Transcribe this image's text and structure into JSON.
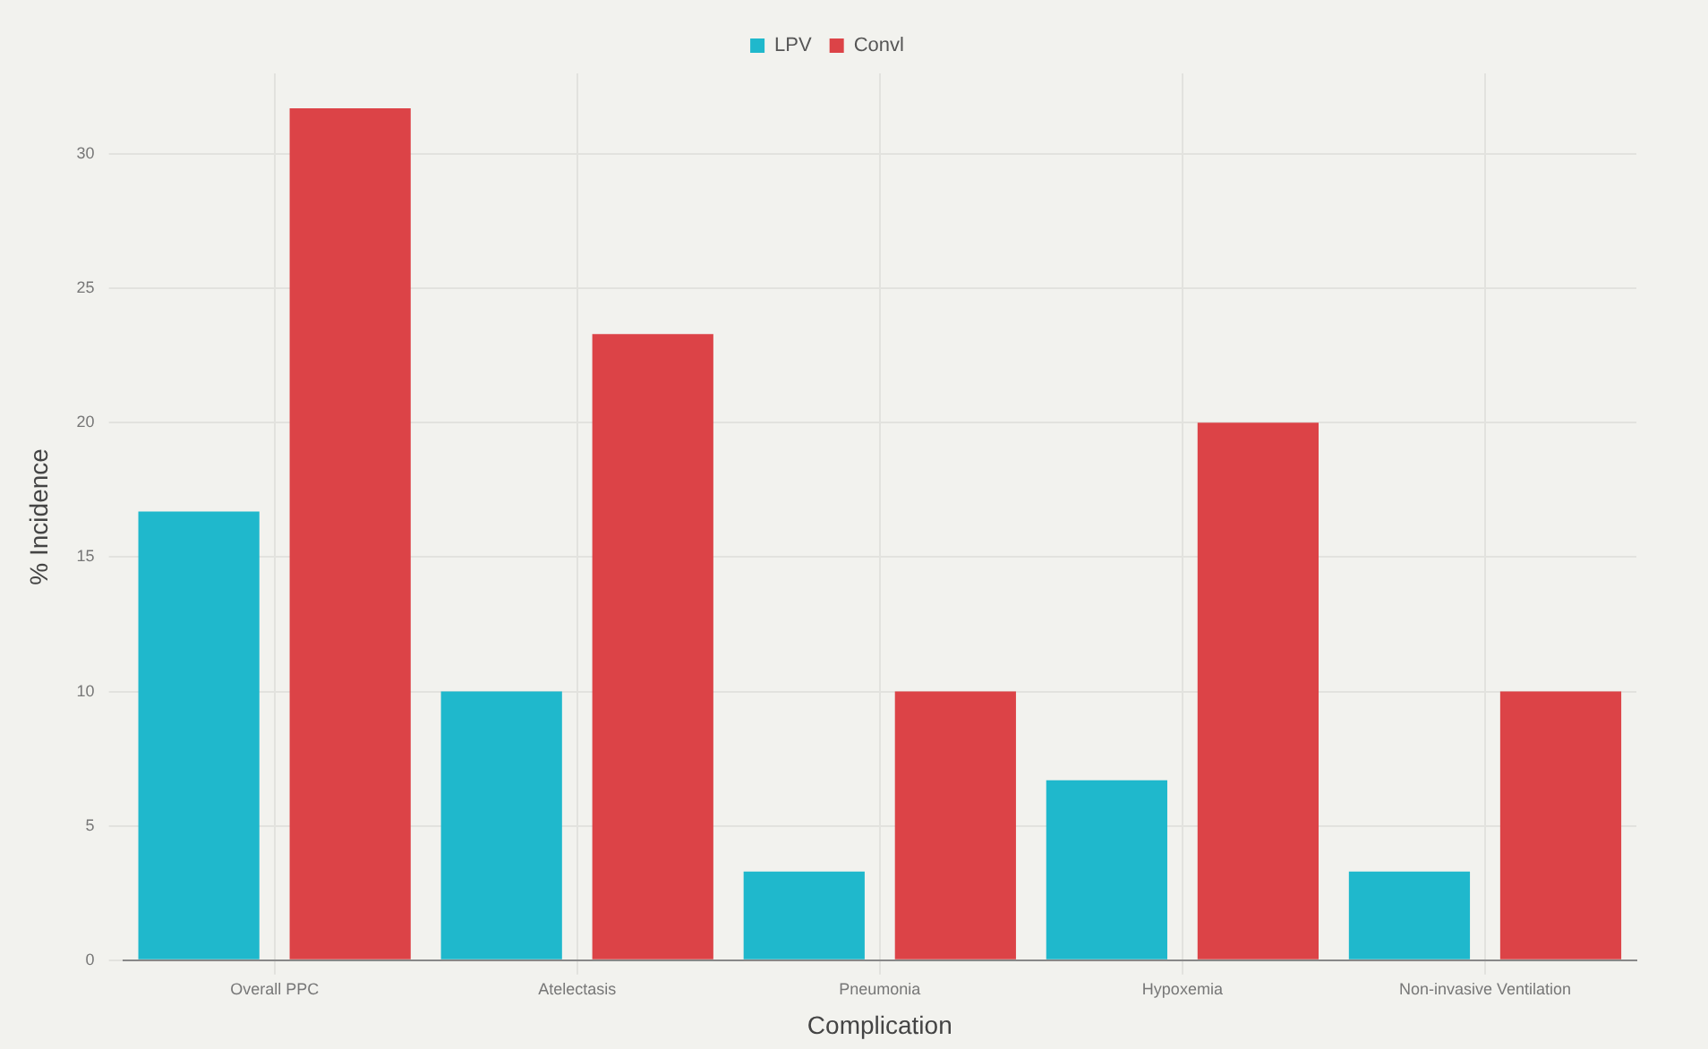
{
  "chart_data": {
    "type": "bar",
    "xlabel": "Complication",
    "ylabel": "% Incidence",
    "categories": [
      "Overall PPC",
      "Atelectasis",
      "Pneumonia",
      "Hypoxemia",
      "Non-invasive Ventilation"
    ],
    "series": [
      {
        "name": "LPV",
        "color": "#1fb8cc",
        "values": [
          16.7,
          10,
          3.3,
          6.7,
          3.3
        ]
      },
      {
        "name": "Convl",
        "color": "#dc4347",
        "values": [
          31.7,
          23.3,
          10,
          20,
          10
        ]
      }
    ],
    "ylim": [
      0,
      33
    ],
    "yticks": [
      0,
      5,
      10,
      15,
      20,
      25,
      30
    ],
    "grid": true,
    "legend": "top"
  }
}
